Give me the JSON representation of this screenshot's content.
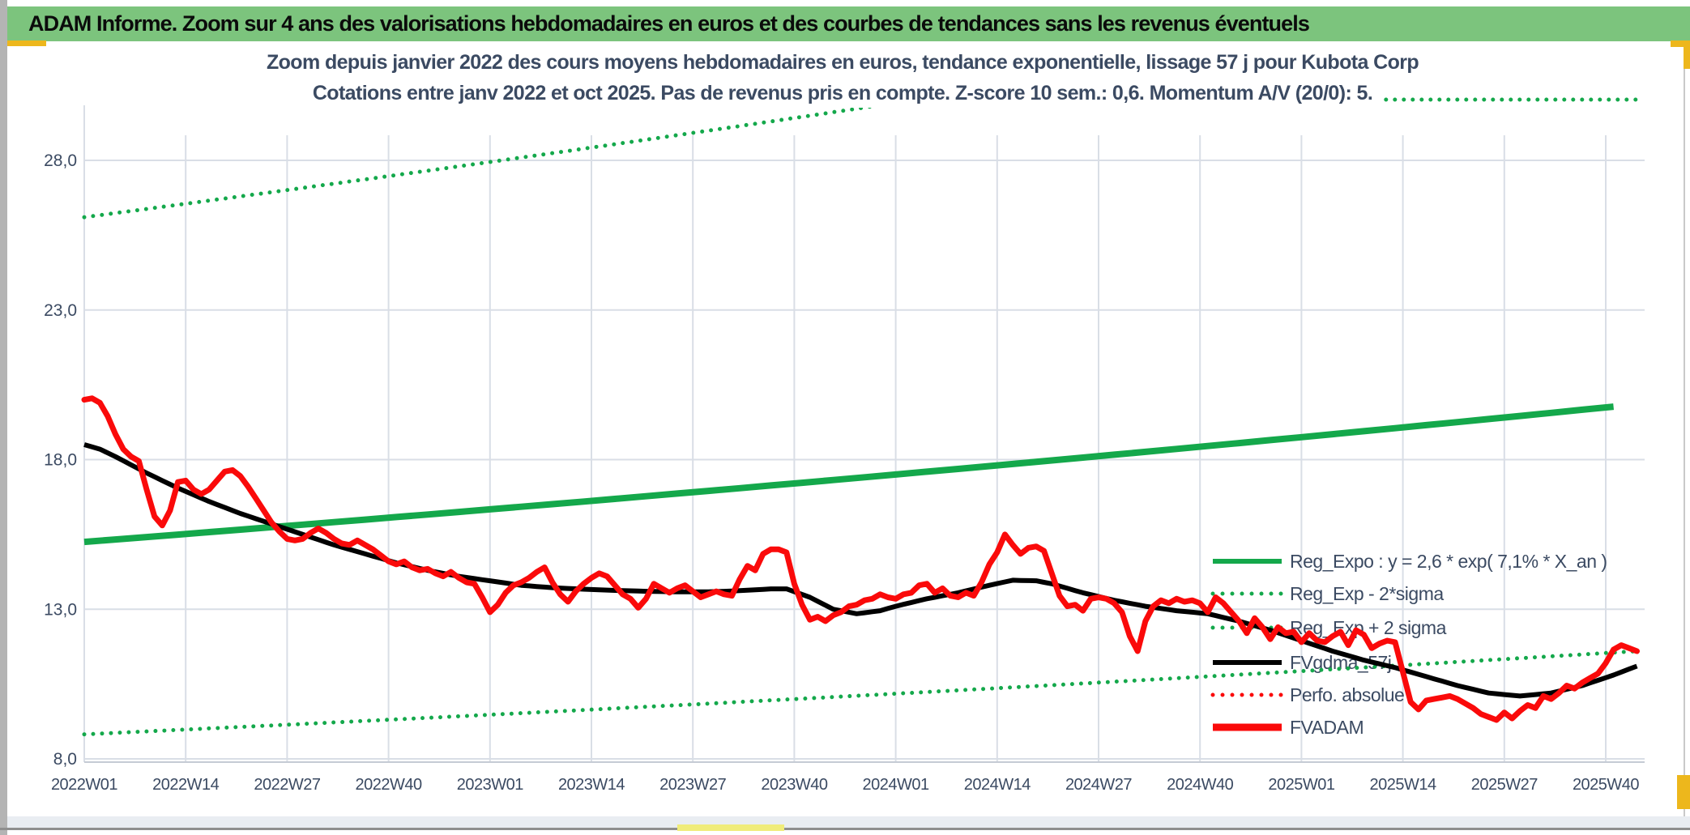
{
  "banner": {
    "text": "ADAM Informe. Zoom sur 4 ans des valorisations hebdomadaires en euros et des courbes de tendances sans les revenus éventuels",
    "bg_color": "#7cc47d"
  },
  "chart": {
    "title_line1": "Zoom depuis janvier 2022 des cours moyens hebdomadaires en euros, tendance exponentielle, lissage 57 j pour Kubota Corp",
    "title_line2": "Cotations entre janv 2022 et oct 2025. Pas de revenus pris en compte. Z-score 10 sem.: 0,6. Momentum A/V (20/0): 5.",
    "title_color": "#3b4a62",
    "gridline_color": "#d9dee6",
    "axis_label_color": "#3b4a62"
  },
  "chart_data": {
    "type": "line",
    "title": "Zoom depuis janvier 2022 des cours moyens hebdomadaires en euros, tendance exponentielle, lissage 57 j pour Kubota Corp",
    "subtitle": "Cotations entre janv 2022 et oct 2025. Pas de revenus pris en compte. Z-score 10 sem.: 0,6. Momentum A/V (20/0): 5.",
    "x_unit": "week index starting 2022W01, one point per week",
    "x_tick_labels": [
      "2022W01",
      "2022W14",
      "2022W27",
      "2022W40",
      "2023W01",
      "2023W14",
      "2023W27",
      "2023W40",
      "2024W01",
      "2024W14",
      "2024W27",
      "2024W40",
      "2025W01",
      "2025W14",
      "2025W27",
      "2025W40"
    ],
    "y_tick_labels": [
      "28,0",
      "23,0",
      "18,0",
      "13,0",
      "8,0"
    ],
    "y_tick_values": [
      28,
      23,
      18,
      13,
      8
    ],
    "ylim": [
      8,
      30.5
    ],
    "weeks_total": 200,
    "grid": true,
    "legend_position": "inside-right",
    "legend": [
      {
        "label": "Reg_Expo : y = 2,6 * exp( 7,1% *  X_an )",
        "marker": "line",
        "color": "#14a84b"
      },
      {
        "label": "Reg_Exp - 2*sigma",
        "marker": "dotted",
        "color": "#14a84b"
      },
      {
        "label": "Reg_Exp + 2 sigma",
        "marker": "dotted",
        "color": "#14a84b"
      },
      {
        "label": "FVgdma_57j",
        "marker": "line",
        "color": "#000000"
      },
      {
        "label": "Perfo. absolue",
        "marker": "dotted",
        "color": "#fa0a0a"
      },
      {
        "label": "FVADAM",
        "marker": "line",
        "color": "#fa0a0a"
      }
    ],
    "series": [
      {
        "name": "FVADAM",
        "color": "#fa0a0a",
        "style": "solid",
        "width": 7,
        "weekly_values": [
          20.0,
          20.05,
          19.9,
          19.45,
          18.85,
          18.35,
          18.1,
          17.95,
          17.0,
          16.1,
          15.8,
          16.3,
          17.25,
          17.3,
          17.0,
          16.85,
          17.0,
          17.3,
          17.6,
          17.65,
          17.45,
          17.1,
          16.7,
          16.3,
          15.9,
          15.6,
          15.35,
          15.3,
          15.35,
          15.55,
          15.7,
          15.55,
          15.35,
          15.2,
          15.15,
          15.3,
          15.15,
          15.0,
          14.8,
          14.6,
          14.5,
          14.6,
          14.4,
          14.3,
          14.35,
          14.2,
          14.1,
          14.25,
          14.05,
          13.9,
          13.85,
          13.4,
          12.9,
          13.15,
          13.55,
          13.8,
          13.9,
          14.05,
          14.25,
          14.4,
          13.9,
          13.5,
          13.25,
          13.6,
          13.85,
          14.05,
          14.2,
          14.1,
          13.8,
          13.5,
          13.35,
          13.05,
          13.35,
          13.85,
          13.7,
          13.55,
          13.7,
          13.8,
          13.6,
          13.4,
          13.5,
          13.6,
          13.5,
          13.45,
          14.0,
          14.45,
          14.3,
          14.85,
          15.0,
          15.0,
          14.9,
          13.85,
          13.15,
          12.65,
          12.75,
          12.6,
          12.8,
          12.9,
          13.1,
          13.15,
          13.3,
          13.35,
          13.5,
          13.4,
          13.35,
          13.5,
          13.55,
          13.8,
          13.85,
          13.55,
          13.7,
          13.45,
          13.4,
          13.55,
          13.45,
          13.9,
          14.5,
          14.9,
          15.5,
          15.15,
          14.85,
          15.05,
          15.1,
          14.95,
          14.2,
          13.45,
          13.1,
          13.15,
          12.95,
          13.35,
          13.4,
          13.35,
          13.2,
          12.9,
          12.1,
          11.6,
          12.6,
          13.1,
          13.3,
          13.2,
          13.35,
          13.25,
          13.3,
          13.2,
          12.9,
          13.4,
          13.2,
          12.9,
          12.6,
          12.2,
          12.7,
          12.4,
          12.0,
          12.4,
          12.2,
          12.25,
          11.9,
          12.2,
          11.95,
          11.9,
          12.1,
          12.25,
          11.8,
          12.3,
          12.15,
          11.7,
          11.85,
          11.95,
          11.9,
          10.9,
          9.9,
          9.65,
          9.95,
          10.0,
          10.05,
          10.1,
          10.0,
          9.85,
          9.7,
          9.5,
          9.4,
          9.3,
          9.55,
          9.35,
          9.6,
          9.8,
          9.7,
          10.1,
          10.0,
          10.2,
          10.45,
          10.35,
          10.55,
          10.7,
          10.85,
          11.2,
          11.65,
          11.8,
          11.7,
          11.6
        ]
      },
      {
        "name": "FVgdma_57j",
        "color": "#000000",
        "style": "solid",
        "width": 6,
        "keypoints": [
          [
            0,
            18.5
          ],
          [
            2,
            18.35
          ],
          [
            4,
            18.1
          ],
          [
            8,
            17.55
          ],
          [
            12,
            17.05
          ],
          [
            16,
            16.6
          ],
          [
            20,
            16.2
          ],
          [
            24,
            15.85
          ],
          [
            28,
            15.5
          ],
          [
            32,
            15.15
          ],
          [
            36,
            14.85
          ],
          [
            40,
            14.55
          ],
          [
            44,
            14.3
          ],
          [
            48,
            14.1
          ],
          [
            52,
            13.95
          ],
          [
            56,
            13.8
          ],
          [
            60,
            13.72
          ],
          [
            64,
            13.67
          ],
          [
            68,
            13.63
          ],
          [
            72,
            13.6
          ],
          [
            76,
            13.58
          ],
          [
            80,
            13.58
          ],
          [
            84,
            13.62
          ],
          [
            88,
            13.68
          ],
          [
            90,
            13.68
          ],
          [
            93,
            13.4
          ],
          [
            96,
            13.0
          ],
          [
            99,
            12.85
          ],
          [
            102,
            12.95
          ],
          [
            104,
            13.1
          ],
          [
            108,
            13.35
          ],
          [
            112,
            13.55
          ],
          [
            116,
            13.8
          ],
          [
            119,
            13.97
          ],
          [
            122,
            13.95
          ],
          [
            124,
            13.85
          ],
          [
            128,
            13.55
          ],
          [
            132,
            13.3
          ],
          [
            136,
            13.1
          ],
          [
            140,
            12.95
          ],
          [
            144,
            12.85
          ],
          [
            148,
            12.6
          ],
          [
            152,
            12.3
          ],
          [
            156,
            11.95
          ],
          [
            160,
            11.6
          ],
          [
            164,
            11.3
          ],
          [
            168,
            11.05
          ],
          [
            172,
            10.75
          ],
          [
            176,
            10.45
          ],
          [
            180,
            10.2
          ],
          [
            184,
            10.1
          ],
          [
            188,
            10.2
          ],
          [
            192,
            10.45
          ],
          [
            196,
            10.8
          ],
          [
            199,
            11.1
          ]
        ]
      },
      {
        "name": "Reg_Expo",
        "color": "#14a84b",
        "style": "solid",
        "width": 8,
        "model": "exponential",
        "value_start": 15.25,
        "value_end": 19.85,
        "formula": "y = 2,6 * exp( 7,1% * X_an )"
      },
      {
        "name": "Reg_Exp + 2 sigma",
        "color": "#14a84b",
        "style": "dotted",
        "width": 5,
        "model": "exponential",
        "value_start": 26.1,
        "value_end": 33.9,
        "cap": 30.03,
        "note": "band clipped flat at top of plot on right side"
      },
      {
        "name": "Reg_Exp - 2*sigma",
        "color": "#14a84b",
        "style": "dotted",
        "width": 5,
        "model": "exponential",
        "value_start": 8.82,
        "value_end": 11.6
      },
      {
        "name": "Perfo. absolue",
        "color": "#fa0a0a",
        "style": "dotted",
        "width": 4,
        "same_as": "FVADAM"
      }
    ]
  },
  "decorations": {
    "selection_handle_color": "#edb71c",
    "left_strip_color": "#b4b4b4",
    "bottom_yellow_color": "#f0ec7a"
  }
}
